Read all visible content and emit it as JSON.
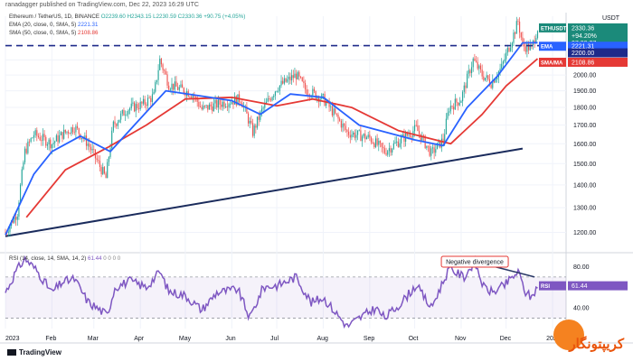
{
  "header": {
    "publisher": "ranadagger published on TradingView.com, Dec 22, 2023 16:29 UTC"
  },
  "legend": {
    "symbol_line": "Ethereum / TetherUS, 1D, BINANCE",
    "ohlc": "O2239.60 H2343.15 L2230.59 C2330.36 +90.75 (+4.05%)",
    "ema_line": "EMA (20, close, 0, SMA, 5)",
    "ema_value": "2221.31",
    "sma_line": "SMA (50, close, 0, SMA, 5)",
    "sma_value": "2108.86",
    "rsi_line": "RSI (14, close, 14, SMA, 14, 2)",
    "rsi_value": "61.44",
    "rsi_extra": "0 0 0 0"
  },
  "footer": {
    "brand": "TradingView"
  },
  "watermark": {
    "text": "کریپتونگار"
  },
  "colors": {
    "up": "#26a69a",
    "down": "#ef5350",
    "ema": "#2962ff",
    "sma": "#e53935",
    "support": "#1a2b5c",
    "dashed": "#1e2a8a",
    "rsi": "#7e57c2",
    "tag_eth": "#1b8a7a",
    "tag_ema": "#2962ff",
    "tag_sma": "#e53935"
  },
  "chart_data": [
    {
      "type": "candlestick",
      "title": "Ethereum / TetherUS, 1D, BINANCE",
      "x_ticks": [
        "2023",
        "Feb",
        "Mar",
        "Apr",
        "May",
        "Jun",
        "Jul",
        "Aug",
        "Sep",
        "Oct",
        "Nov",
        "Dec",
        "2024"
      ],
      "y_scale": "log",
      "y_ticks": [
        1200,
        1300,
        1400,
        1500,
        1600,
        1700,
        1800,
        1900,
        2000,
        2100,
        2200
      ],
      "ylim": [
        1130,
        2420
      ],
      "price_tags": [
        {
          "name": "ETHUSDT",
          "value": 2330.36,
          "extra": [
            "+94.20%",
            "07:30:27"
          ]
        },
        {
          "name": "EMA",
          "value": 2221.31
        },
        {
          "name": "SMA",
          "value": 2108.86
        },
        {
          "name": "",
          "value": 2200.0
        }
      ],
      "horizontal_levels": [
        {
          "style": "dashed",
          "value": 2200
        }
      ],
      "support_line": [
        {
          "date": "2023-01-01",
          "value": 1185
        },
        {
          "date": "2023-12-12",
          "value": 1575
        }
      ],
      "price_path": [
        {
          "date": "2023-01-01",
          "value": 1200
        },
        {
          "date": "2023-01-09",
          "value": 1280
        },
        {
          "date": "2023-01-14",
          "value": 1560
        },
        {
          "date": "2023-01-20",
          "value": 1650
        },
        {
          "date": "2023-02-01",
          "value": 1600
        },
        {
          "date": "2023-02-08",
          "value": 1650
        },
        {
          "date": "2023-02-16",
          "value": 1690
        },
        {
          "date": "2023-02-25",
          "value": 1600
        },
        {
          "date": "2023-03-09",
          "value": 1430
        },
        {
          "date": "2023-03-14",
          "value": 1700
        },
        {
          "date": "2023-03-23",
          "value": 1790
        },
        {
          "date": "2023-04-03",
          "value": 1820
        },
        {
          "date": "2023-04-10",
          "value": 1870
        },
        {
          "date": "2023-04-14",
          "value": 2100
        },
        {
          "date": "2023-04-20",
          "value": 1940
        },
        {
          "date": "2023-05-06",
          "value": 1880
        },
        {
          "date": "2023-05-12",
          "value": 1790
        },
        {
          "date": "2023-05-27",
          "value": 1830
        },
        {
          "date": "2023-06-07",
          "value": 1850
        },
        {
          "date": "2023-06-15",
          "value": 1660
        },
        {
          "date": "2023-06-21",
          "value": 1780
        },
        {
          "date": "2023-07-01",
          "value": 1920
        },
        {
          "date": "2023-07-14",
          "value": 2000
        },
        {
          "date": "2023-07-20",
          "value": 1910
        },
        {
          "date": "2023-08-01",
          "value": 1850
        },
        {
          "date": "2023-08-17",
          "value": 1660
        },
        {
          "date": "2023-09-01",
          "value": 1630
        },
        {
          "date": "2023-09-11",
          "value": 1560
        },
        {
          "date": "2023-09-20",
          "value": 1610
        },
        {
          "date": "2023-10-02",
          "value": 1680
        },
        {
          "date": "2023-10-12",
          "value": 1550
        },
        {
          "date": "2023-10-20",
          "value": 1620
        },
        {
          "date": "2023-10-24",
          "value": 1800
        },
        {
          "date": "2023-11-01",
          "value": 1850
        },
        {
          "date": "2023-11-09",
          "value": 2100
        },
        {
          "date": "2023-11-15",
          "value": 2000
        },
        {
          "date": "2023-11-21",
          "value": 1950
        },
        {
          "date": "2023-11-28",
          "value": 2050
        },
        {
          "date": "2023-12-05",
          "value": 2250
        },
        {
          "date": "2023-12-09",
          "value": 2380
        },
        {
          "date": "2023-12-12",
          "value": 2200
        },
        {
          "date": "2023-12-18",
          "value": 2180
        },
        {
          "date": "2023-12-22",
          "value": 2330
        }
      ],
      "ema20_path": [
        {
          "date": "2023-01-01",
          "value": 1190
        },
        {
          "date": "2023-01-20",
          "value": 1450
        },
        {
          "date": "2023-02-01",
          "value": 1560
        },
        {
          "date": "2023-02-20",
          "value": 1640
        },
        {
          "date": "2023-03-12",
          "value": 1560
        },
        {
          "date": "2023-03-28",
          "value": 1700
        },
        {
          "date": "2023-04-18",
          "value": 1900
        },
        {
          "date": "2023-05-10",
          "value": 1870
        },
        {
          "date": "2023-06-01",
          "value": 1840
        },
        {
          "date": "2023-06-20",
          "value": 1760
        },
        {
          "date": "2023-07-10",
          "value": 1880
        },
        {
          "date": "2023-08-01",
          "value": 1860
        },
        {
          "date": "2023-08-25",
          "value": 1700
        },
        {
          "date": "2023-10-01",
          "value": 1620
        },
        {
          "date": "2023-10-20",
          "value": 1590
        },
        {
          "date": "2023-11-05",
          "value": 1800
        },
        {
          "date": "2023-11-25",
          "value": 1990
        },
        {
          "date": "2023-12-12",
          "value": 2220
        },
        {
          "date": "2023-12-22",
          "value": 2221
        }
      ],
      "sma50_path": [
        {
          "date": "2023-01-15",
          "value": 1260
        },
        {
          "date": "2023-02-10",
          "value": 1470
        },
        {
          "date": "2023-03-10",
          "value": 1580
        },
        {
          "date": "2023-04-05",
          "value": 1700
        },
        {
          "date": "2023-05-01",
          "value": 1850
        },
        {
          "date": "2023-06-01",
          "value": 1860
        },
        {
          "date": "2023-07-01",
          "value": 1810
        },
        {
          "date": "2023-07-25",
          "value": 1850
        },
        {
          "date": "2023-08-20",
          "value": 1800
        },
        {
          "date": "2023-09-20",
          "value": 1670
        },
        {
          "date": "2023-10-25",
          "value": 1600
        },
        {
          "date": "2023-11-15",
          "value": 1760
        },
        {
          "date": "2023-12-01",
          "value": 1930
        },
        {
          "date": "2023-12-22",
          "value": 2108
        }
      ]
    },
    {
      "type": "line",
      "title": "RSI (14, close, 14, SMA, 14, 2)",
      "ylim": [
        20,
        90
      ],
      "y_ticks": [
        40,
        60,
        80
      ],
      "bands": [
        30,
        70
      ],
      "last_value": 61.44,
      "annotation": "Negative divergence",
      "divergence_line": [
        {
          "date": "2023-11-10",
          "value": 85
        },
        {
          "date": "2023-12-20",
          "value": 70
        }
      ],
      "values": [
        {
          "date": "2023-01-01",
          "value": 55
        },
        {
          "date": "2023-01-08",
          "value": 75
        },
        {
          "date": "2023-01-14",
          "value": 88
        },
        {
          "date": "2023-01-22",
          "value": 76
        },
        {
          "date": "2023-02-01",
          "value": 55
        },
        {
          "date": "2023-02-08",
          "value": 65
        },
        {
          "date": "2023-02-16",
          "value": 68
        },
        {
          "date": "2023-02-25",
          "value": 46
        },
        {
          "date": "2023-03-03",
          "value": 40
        },
        {
          "date": "2023-03-10",
          "value": 33
        },
        {
          "date": "2023-03-15",
          "value": 60
        },
        {
          "date": "2023-03-25",
          "value": 66
        },
        {
          "date": "2023-04-05",
          "value": 60
        },
        {
          "date": "2023-04-14",
          "value": 75
        },
        {
          "date": "2023-04-20",
          "value": 56
        },
        {
          "date": "2023-05-01",
          "value": 52
        },
        {
          "date": "2023-05-12",
          "value": 38
        },
        {
          "date": "2023-05-22",
          "value": 55
        },
        {
          "date": "2023-06-05",
          "value": 58
        },
        {
          "date": "2023-06-13",
          "value": 30
        },
        {
          "date": "2023-06-22",
          "value": 60
        },
        {
          "date": "2023-07-02",
          "value": 62
        },
        {
          "date": "2023-07-14",
          "value": 70
        },
        {
          "date": "2023-07-24",
          "value": 45
        },
        {
          "date": "2023-08-01",
          "value": 50
        },
        {
          "date": "2023-08-17",
          "value": 22
        },
        {
          "date": "2023-08-25",
          "value": 30
        },
        {
          "date": "2023-09-05",
          "value": 40
        },
        {
          "date": "2023-09-11",
          "value": 30
        },
        {
          "date": "2023-09-22",
          "value": 45
        },
        {
          "date": "2023-10-02",
          "value": 62
        },
        {
          "date": "2023-10-12",
          "value": 40
        },
        {
          "date": "2023-10-24",
          "value": 78
        },
        {
          "date": "2023-11-03",
          "value": 70
        },
        {
          "date": "2023-11-10",
          "value": 85
        },
        {
          "date": "2023-11-16",
          "value": 60
        },
        {
          "date": "2023-11-22",
          "value": 55
        },
        {
          "date": "2023-11-30",
          "value": 62
        },
        {
          "date": "2023-12-09",
          "value": 75
        },
        {
          "date": "2023-12-14",
          "value": 55
        },
        {
          "date": "2023-12-18",
          "value": 50
        },
        {
          "date": "2023-12-22",
          "value": 61.44
        }
      ]
    }
  ]
}
